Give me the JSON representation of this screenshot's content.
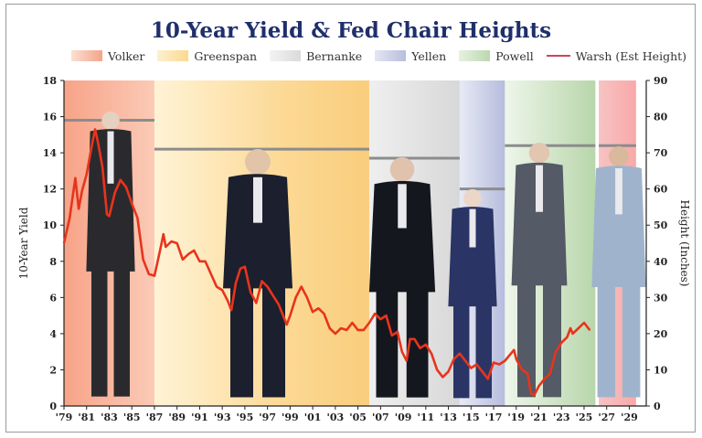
{
  "title": "10-Year Yield & Fed Chair Heights",
  "legend": [
    {
      "key": "volker",
      "label": "Volker",
      "color": "#f4a48a"
    },
    {
      "key": "greenspan",
      "label": "Greenspan",
      "color": "#fbd98f"
    },
    {
      "key": "bernanke",
      "label": "Bernanke",
      "color": "#dadada"
    },
    {
      "key": "yellen",
      "label": "Yellen",
      "color": "#b8bedd"
    },
    {
      "key": "powell",
      "label": "Powell",
      "color": "#bcd8b0"
    },
    {
      "key": "warsh",
      "label": "Warsh (Est Height)",
      "color": "#c9485b"
    }
  ],
  "chart_data": {
    "type": "line",
    "title": "10-Year Yield & Fed Chair Heights",
    "xlabel": "",
    "ylabel": "10-Year Yield",
    "y2label": "Height (Inches)",
    "xlim": [
      1979,
      2030.5
    ],
    "ylim": [
      0,
      18
    ],
    "y2lim": [
      0,
      90
    ],
    "yticks": [
      0,
      2,
      4,
      6,
      8,
      10,
      12,
      14,
      16,
      18
    ],
    "y2ticks": [
      0,
      10,
      20,
      30,
      40,
      50,
      60,
      70,
      80,
      90
    ],
    "xticks": [
      1979,
      1981,
      1983,
      1985,
      1987,
      1989,
      1991,
      1993,
      1995,
      1997,
      1999,
      2001,
      2003,
      2005,
      2007,
      2009,
      2011,
      2013,
      2015,
      2017,
      2019,
      2021,
      2023,
      2025,
      2027,
      2029
    ],
    "xticklabels": [
      "'79",
      "'81",
      "'83",
      "'85",
      "'87",
      "'89",
      "'91",
      "'93",
      "'95",
      "'97",
      "'99",
      "'01",
      "'03",
      "'05",
      "'07",
      "'09",
      "'11",
      "'13",
      "'15",
      "'17",
      "'19",
      "'21",
      "'23",
      "'25",
      "'27",
      "'29"
    ],
    "eras": [
      {
        "chair": "Volker",
        "start": 1979.0,
        "end": 1987.0,
        "height_in": 79,
        "color": "#f4a48a"
      },
      {
        "chair": "Greenspan",
        "start": 1987.0,
        "end": 2006.0,
        "height_in": 71,
        "color": "#fbd98f"
      },
      {
        "chair": "Bernanke",
        "start": 2006.0,
        "end": 2014.0,
        "height_in": 68.5,
        "color": "#dadada"
      },
      {
        "chair": "Yellen",
        "start": 2014.0,
        "end": 2018.0,
        "height_in": 60,
        "color": "#b8bedd"
      },
      {
        "chair": "Powell",
        "start": 2018.0,
        "end": 2026.0,
        "height_in": 72,
        "color": "#bcd8b0"
      },
      {
        "chair": "Warsh",
        "start": 2026.0,
        "end": 2030.5,
        "height_in": 72,
        "color": "#c9485b"
      }
    ],
    "series": [
      {
        "name": "10-Year Yield",
        "x": [
          1979.0,
          1979.5,
          1980.0,
          1980.3,
          1980.6,
          1981.0,
          1981.4,
          1981.75,
          1982.0,
          1982.4,
          1982.8,
          1983.0,
          1983.5,
          1984.0,
          1984.5,
          1985.0,
          1985.5,
          1986.0,
          1986.5,
          1987.0,
          1987.5,
          1987.8,
          1988.0,
          1988.5,
          1989.0,
          1989.5,
          1990.0,
          1990.5,
          1991.0,
          1991.5,
          1992.0,
          1992.5,
          1993.0,
          1993.5,
          1993.8,
          1994.2,
          1994.6,
          1995.0,
          1995.5,
          1996.0,
          1996.5,
          1997.0,
          1997.5,
          1998.0,
          1998.7,
          1999.0,
          1999.5,
          2000.0,
          2000.5,
          2001.0,
          2001.5,
          2002.0,
          2002.5,
          2003.0,
          2003.5,
          2004.0,
          2004.5,
          2005.0,
          2005.5,
          2006.0,
          2006.5,
          2007.0,
          2007.5,
          2008.0,
          2008.5,
          2008.9,
          2009.3,
          2009.6,
          2010.0,
          2010.5,
          2011.0,
          2011.5,
          2012.0,
          2012.5,
          2013.0,
          2013.5,
          2014.0,
          2014.5,
          2015.0,
          2015.5,
          2016.0,
          2016.5,
          2017.0,
          2017.5,
          2018.0,
          2018.8,
          2019.0,
          2019.5,
          2020.0,
          2020.3,
          2020.6,
          2021.0,
          2021.5,
          2022.0,
          2022.5,
          2023.0,
          2023.5,
          2023.8,
          2024.0,
          2024.5,
          2025.0,
          2025.5
        ],
        "values": [
          9.0,
          10.4,
          12.6,
          10.9,
          11.9,
          12.8,
          14.2,
          15.3,
          14.6,
          13.2,
          10.6,
          10.5,
          11.8,
          12.5,
          12.1,
          11.2,
          10.4,
          8.1,
          7.3,
          7.2,
          8.6,
          9.5,
          8.8,
          9.1,
          9.0,
          8.1,
          8.4,
          8.6,
          8.0,
          8.0,
          7.3,
          6.6,
          6.4,
          5.8,
          5.3,
          6.8,
          7.6,
          7.7,
          6.3,
          5.7,
          6.9,
          6.6,
          6.1,
          5.6,
          4.5,
          5.0,
          6.0,
          6.6,
          6.0,
          5.2,
          5.4,
          5.1,
          4.3,
          4.0,
          4.3,
          4.2,
          4.6,
          4.2,
          4.2,
          4.6,
          5.1,
          4.8,
          5.0,
          3.9,
          4.1,
          3.0,
          2.5,
          3.7,
          3.7,
          3.2,
          3.4,
          2.9,
          2.0,
          1.6,
          1.9,
          2.6,
          2.9,
          2.5,
          2.1,
          2.3,
          1.9,
          1.5,
          2.4,
          2.3,
          2.5,
          3.1,
          2.6,
          2.0,
          1.8,
          0.7,
          0.6,
          1.1,
          1.5,
          1.8,
          3.0,
          3.5,
          3.8,
          4.3,
          4.0,
          4.3,
          4.6,
          4.2
        ]
      }
    ]
  }
}
